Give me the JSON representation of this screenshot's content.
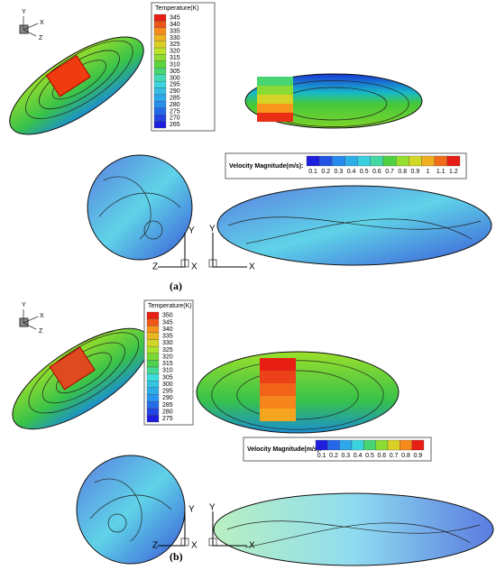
{
  "panels": [
    {
      "label": "(a)",
      "temperature_legend": {
        "title": "Temperature(K)",
        "labels": [
          "345",
          "340",
          "335",
          "330",
          "325",
          "320",
          "315",
          "310",
          "305",
          "300",
          "295",
          "290",
          "285",
          "280",
          "275",
          "270",
          "265"
        ]
      },
      "velocity_legend": {
        "title": "Velocity Magnitude(m/s):",
        "labels": [
          "0.1",
          "0.2",
          "0.3",
          "0.4",
          "0.5",
          "0.6",
          "0.7",
          "0.8",
          "0.9",
          "1",
          "1.1",
          "1.2"
        ]
      },
      "small_axes": [
        "Y",
        "X",
        "Z"
      ],
      "cross_section_axes": [
        "Y",
        "Z",
        "X"
      ],
      "side_axes": [
        "Y",
        "X"
      ]
    },
    {
      "label": "(b)",
      "temperature_legend": {
        "title": "Temperature(K)",
        "labels": [
          "350",
          "345",
          "340",
          "335",
          "330",
          "325",
          "320",
          "315",
          "310",
          "305",
          "300",
          "295",
          "290",
          "285",
          "280",
          "275"
        ]
      },
      "velocity_legend": {
        "title": "Velocity Magnitude(m/s):",
        "labels": [
          "0.1",
          "0.2",
          "0.3",
          "0.4",
          "0.5",
          "0.6",
          "0.7",
          "0.8",
          "0.9"
        ]
      },
      "small_axes": [
        "Y",
        "X",
        "Z"
      ],
      "cross_section_axes": [
        "Y",
        "Z",
        "X"
      ],
      "side_axes": [
        "Y",
        "X"
      ]
    }
  ]
}
